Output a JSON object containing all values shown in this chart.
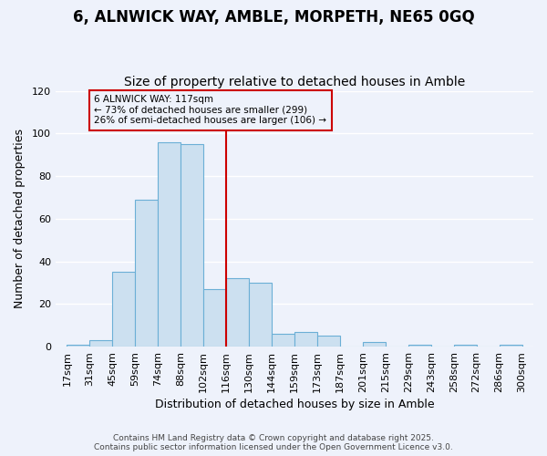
{
  "title": "6, ALNWICK WAY, AMBLE, MORPETH, NE65 0GQ",
  "subtitle": "Size of property relative to detached houses in Amble",
  "xlabel": "Distribution of detached houses by size in Amble",
  "ylabel": "Number of detached properties",
  "bar_labels": [
    "17sqm",
    "31sqm",
    "45sqm",
    "59sqm",
    "74sqm",
    "88sqm",
    "102sqm",
    "116sqm",
    "130sqm",
    "144sqm",
    "159sqm",
    "173sqm",
    "187sqm",
    "201sqm",
    "215sqm",
    "229sqm",
    "243sqm",
    "258sqm",
    "272sqm",
    "286sqm",
    "300sqm"
  ],
  "bar_heights": [
    1,
    3,
    35,
    69,
    96,
    95,
    27,
    32,
    30,
    6,
    7,
    5,
    0,
    2,
    0,
    1,
    0,
    1,
    0,
    1
  ],
  "bar_color": "#cce0f0",
  "bar_edgecolor": "#6bafd6",
  "vline_color": "#cc0000",
  "annotation_text": "6 ALNWICK WAY: 117sqm\n← 73% of detached houses are smaller (299)\n26% of semi-detached houses are larger (106) →",
  "annotation_box_edgecolor": "#cc0000",
  "background_color": "#eef2fb",
  "grid_color": "#ffffff",
  "ylim": [
    0,
    120
  ],
  "yticks": [
    0,
    20,
    40,
    60,
    80,
    100,
    120
  ],
  "footer_line1": "Contains HM Land Registry data © Crown copyright and database right 2025.",
  "footer_line2": "Contains public sector information licensed under the Open Government Licence v3.0.",
  "title_fontsize": 12,
  "subtitle_fontsize": 10,
  "axis_label_fontsize": 9,
  "tick_fontsize": 8
}
